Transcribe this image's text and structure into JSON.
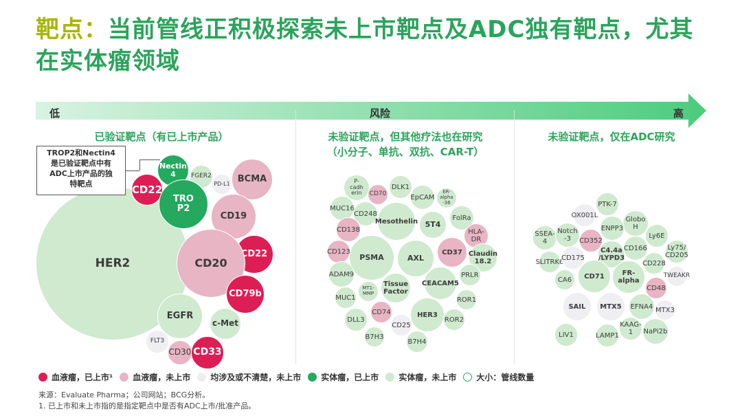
{
  "title": {
    "keyword": "靶点：",
    "text": "当前管线正积极探索未上市靶点及ADC独有靶点，尤其在实体瘤领域"
  },
  "scale": {
    "low": "低",
    "mid": "风险",
    "high": "高"
  },
  "sections": {
    "validated": "已验证靶点（有已上市产品）",
    "unvalidated_other_line1": "未验证靶点，但其他疗法也在研究",
    "unvalidated_other_line2": "（小分子、单抗、双抗、CAR-T）",
    "unvalidated_adc": "未验证靶点，仅在ADC研究"
  },
  "note": "TROP2和Nectin4\n是已验证靶点中有\nADC上市产品的独\n特靶点",
  "colors": {
    "heme_marketed": "#dd1e55",
    "heme_not_marketed": "#e8b5c4",
    "both_unclear": "#eeeef3",
    "solid_marketed": "#24a95f",
    "solid_not_marketed": "#cfeacf",
    "arrow": "#4ccc7d"
  },
  "bubbles": [
    {
      "label": "HER2",
      "cat": "solid_not_marketed"
    },
    {
      "label": "Nectin\n4",
      "cat": "solid_marketed"
    },
    {
      "label": "FGER2",
      "cat": "solid_not_marketed"
    },
    {
      "label": "PD-L1",
      "cat": "both_unclear"
    },
    {
      "label": "BCMA",
      "cat": "heme_not_marketed"
    },
    {
      "label": "CD22",
      "cat": "heme_marketed"
    },
    {
      "label": "TRO\nP2",
      "cat": "solid_marketed"
    },
    {
      "label": "CD19",
      "cat": "heme_not_marketed"
    },
    {
      "label": "CD22",
      "cat": "heme_marketed"
    },
    {
      "label": "CD20",
      "cat": "heme_not_marketed"
    },
    {
      "label": "CD79b",
      "cat": "heme_marketed"
    },
    {
      "label": "EGFR",
      "cat": "solid_not_marketed"
    },
    {
      "label": "c-Met",
      "cat": "solid_not_marketed"
    },
    {
      "label": "FLT3",
      "cat": "both_unclear"
    },
    {
      "label": "CD30",
      "cat": "heme_not_marketed"
    },
    {
      "label": "CD33",
      "cat": "heme_marketed"
    },
    {
      "label": "P-\ncadh\nerin",
      "cat": "solid_not_marketed"
    },
    {
      "label": "CD70",
      "cat": "heme_not_marketed"
    },
    {
      "label": "DLK1",
      "cat": "solid_not_marketed"
    },
    {
      "label": "EpCAM",
      "cat": "solid_not_marketed"
    },
    {
      "label": "ER-\nalpha\n-36",
      "cat": "solid_not_marketed"
    },
    {
      "label": "MUC16",
      "cat": "solid_not_marketed"
    },
    {
      "label": "CD248",
      "cat": "solid_not_marketed"
    },
    {
      "label": "Mesothelin",
      "cat": "solid_not_marketed"
    },
    {
      "label": "5T4",
      "cat": "solid_not_marketed"
    },
    {
      "label": "FolRa",
      "cat": "solid_not_marketed"
    },
    {
      "label": "CD138",
      "cat": "heme_not_marketed"
    },
    {
      "label": "HLA-DR",
      "cat": "heme_not_marketed"
    },
    {
      "label": "CD123",
      "cat": "heme_not_marketed"
    },
    {
      "label": "PSMA",
      "cat": "solid_not_marketed"
    },
    {
      "label": "AXL",
      "cat": "solid_not_marketed"
    },
    {
      "label": "CD37",
      "cat": "heme_not_marketed"
    },
    {
      "label": "Claudin\n18.2",
      "cat": "solid_not_marketed"
    },
    {
      "label": "ADAM9",
      "cat": "solid_not_marketed"
    },
    {
      "label": "PRLR",
      "cat": "solid_not_marketed"
    },
    {
      "label": "MT1-\nMMP",
      "cat": "solid_not_marketed"
    },
    {
      "label": "Tissue\nFactor",
      "cat": "solid_not_marketed"
    },
    {
      "label": "CEACAM5",
      "cat": "solid_not_marketed"
    },
    {
      "label": "MUC1",
      "cat": "solid_not_marketed"
    },
    {
      "label": "ROR1",
      "cat": "solid_not_marketed"
    },
    {
      "label": "CD74",
      "cat": "heme_not_marketed"
    },
    {
      "label": "DLL3",
      "cat": "solid_not_marketed"
    },
    {
      "label": "HER3",
      "cat": "solid_not_marketed"
    },
    {
      "label": "ROR2",
      "cat": "solid_not_marketed"
    },
    {
      "label": "CD25",
      "cat": "both_unclear"
    },
    {
      "label": "B7H3",
      "cat": "solid_not_marketed"
    },
    {
      "label": "B7H4",
      "cat": "solid_not_marketed"
    },
    {
      "label": "PTK-7",
      "cat": "solid_not_marketed"
    },
    {
      "label": "OX001L",
      "cat": "both_unclear"
    },
    {
      "label": "Globo H",
      "cat": "solid_not_marketed"
    },
    {
      "label": "ENPP3",
      "cat": "solid_not_marketed"
    },
    {
      "label": "SSEA-4",
      "cat": "solid_not_marketed"
    },
    {
      "label": "Notch\n-3",
      "cat": "solid_not_marketed"
    },
    {
      "label": "CD352",
      "cat": "heme_not_marketed"
    },
    {
      "label": "Ly6E",
      "cat": "solid_not_marketed"
    },
    {
      "label": "C4.4a\n/LYPD3",
      "cat": "solid_not_marketed"
    },
    {
      "label": "CD166",
      "cat": "solid_not_marketed"
    },
    {
      "label": "Ly75/\nCD205",
      "cat": "solid_not_marketed"
    },
    {
      "label": "SLITRK6",
      "cat": "solid_not_marketed"
    },
    {
      "label": "CD175",
      "cat": "both_unclear"
    },
    {
      "label": "CD228",
      "cat": "solid_not_marketed"
    },
    {
      "label": "CD71",
      "cat": "solid_not_marketed"
    },
    {
      "label": "FR-alpha",
      "cat": "solid_not_marketed"
    },
    {
      "label": "CA6",
      "cat": "solid_not_marketed"
    },
    {
      "label": "TWEAKR",
      "cat": "both_unclear"
    },
    {
      "label": "CD48",
      "cat": "heme_not_marketed"
    },
    {
      "label": "SAIL",
      "cat": "both_unclear"
    },
    {
      "label": "MTX5",
      "cat": "both_unclear"
    },
    {
      "label": "EFNA4",
      "cat": "solid_not_marketed"
    },
    {
      "label": "MTX3",
      "cat": "both_unclear"
    },
    {
      "label": "KAAG-1",
      "cat": "solid_not_marketed"
    },
    {
      "label": "LIV1",
      "cat": "solid_not_marketed"
    },
    {
      "label": "LAMP1",
      "cat": "solid_not_marketed"
    },
    {
      "label": "NaPi2b",
      "cat": "solid_not_marketed"
    }
  ],
  "legend": [
    {
      "label": "血液瘤，已上市¹",
      "cat": "heme_marketed"
    },
    {
      "label": "血液瘤，未上市",
      "cat": "heme_not_marketed"
    },
    {
      "label": "均涉及或不清楚，未上市",
      "cat": "both_unclear"
    },
    {
      "label": "实体瘤，已上市",
      "cat": "solid_marketed"
    },
    {
      "label": "实体瘤，未上市",
      "cat": "solid_not_marketed"
    },
    {
      "label": "大小：管线数量",
      "cat": "size"
    }
  ],
  "footnotes": {
    "source": "来源：Evaluate Pharma；公司网站；BCG分析。",
    "note1": "1. 已上市和未上市指的是指定靶点中是否有ADC上市/批准产品。"
  }
}
